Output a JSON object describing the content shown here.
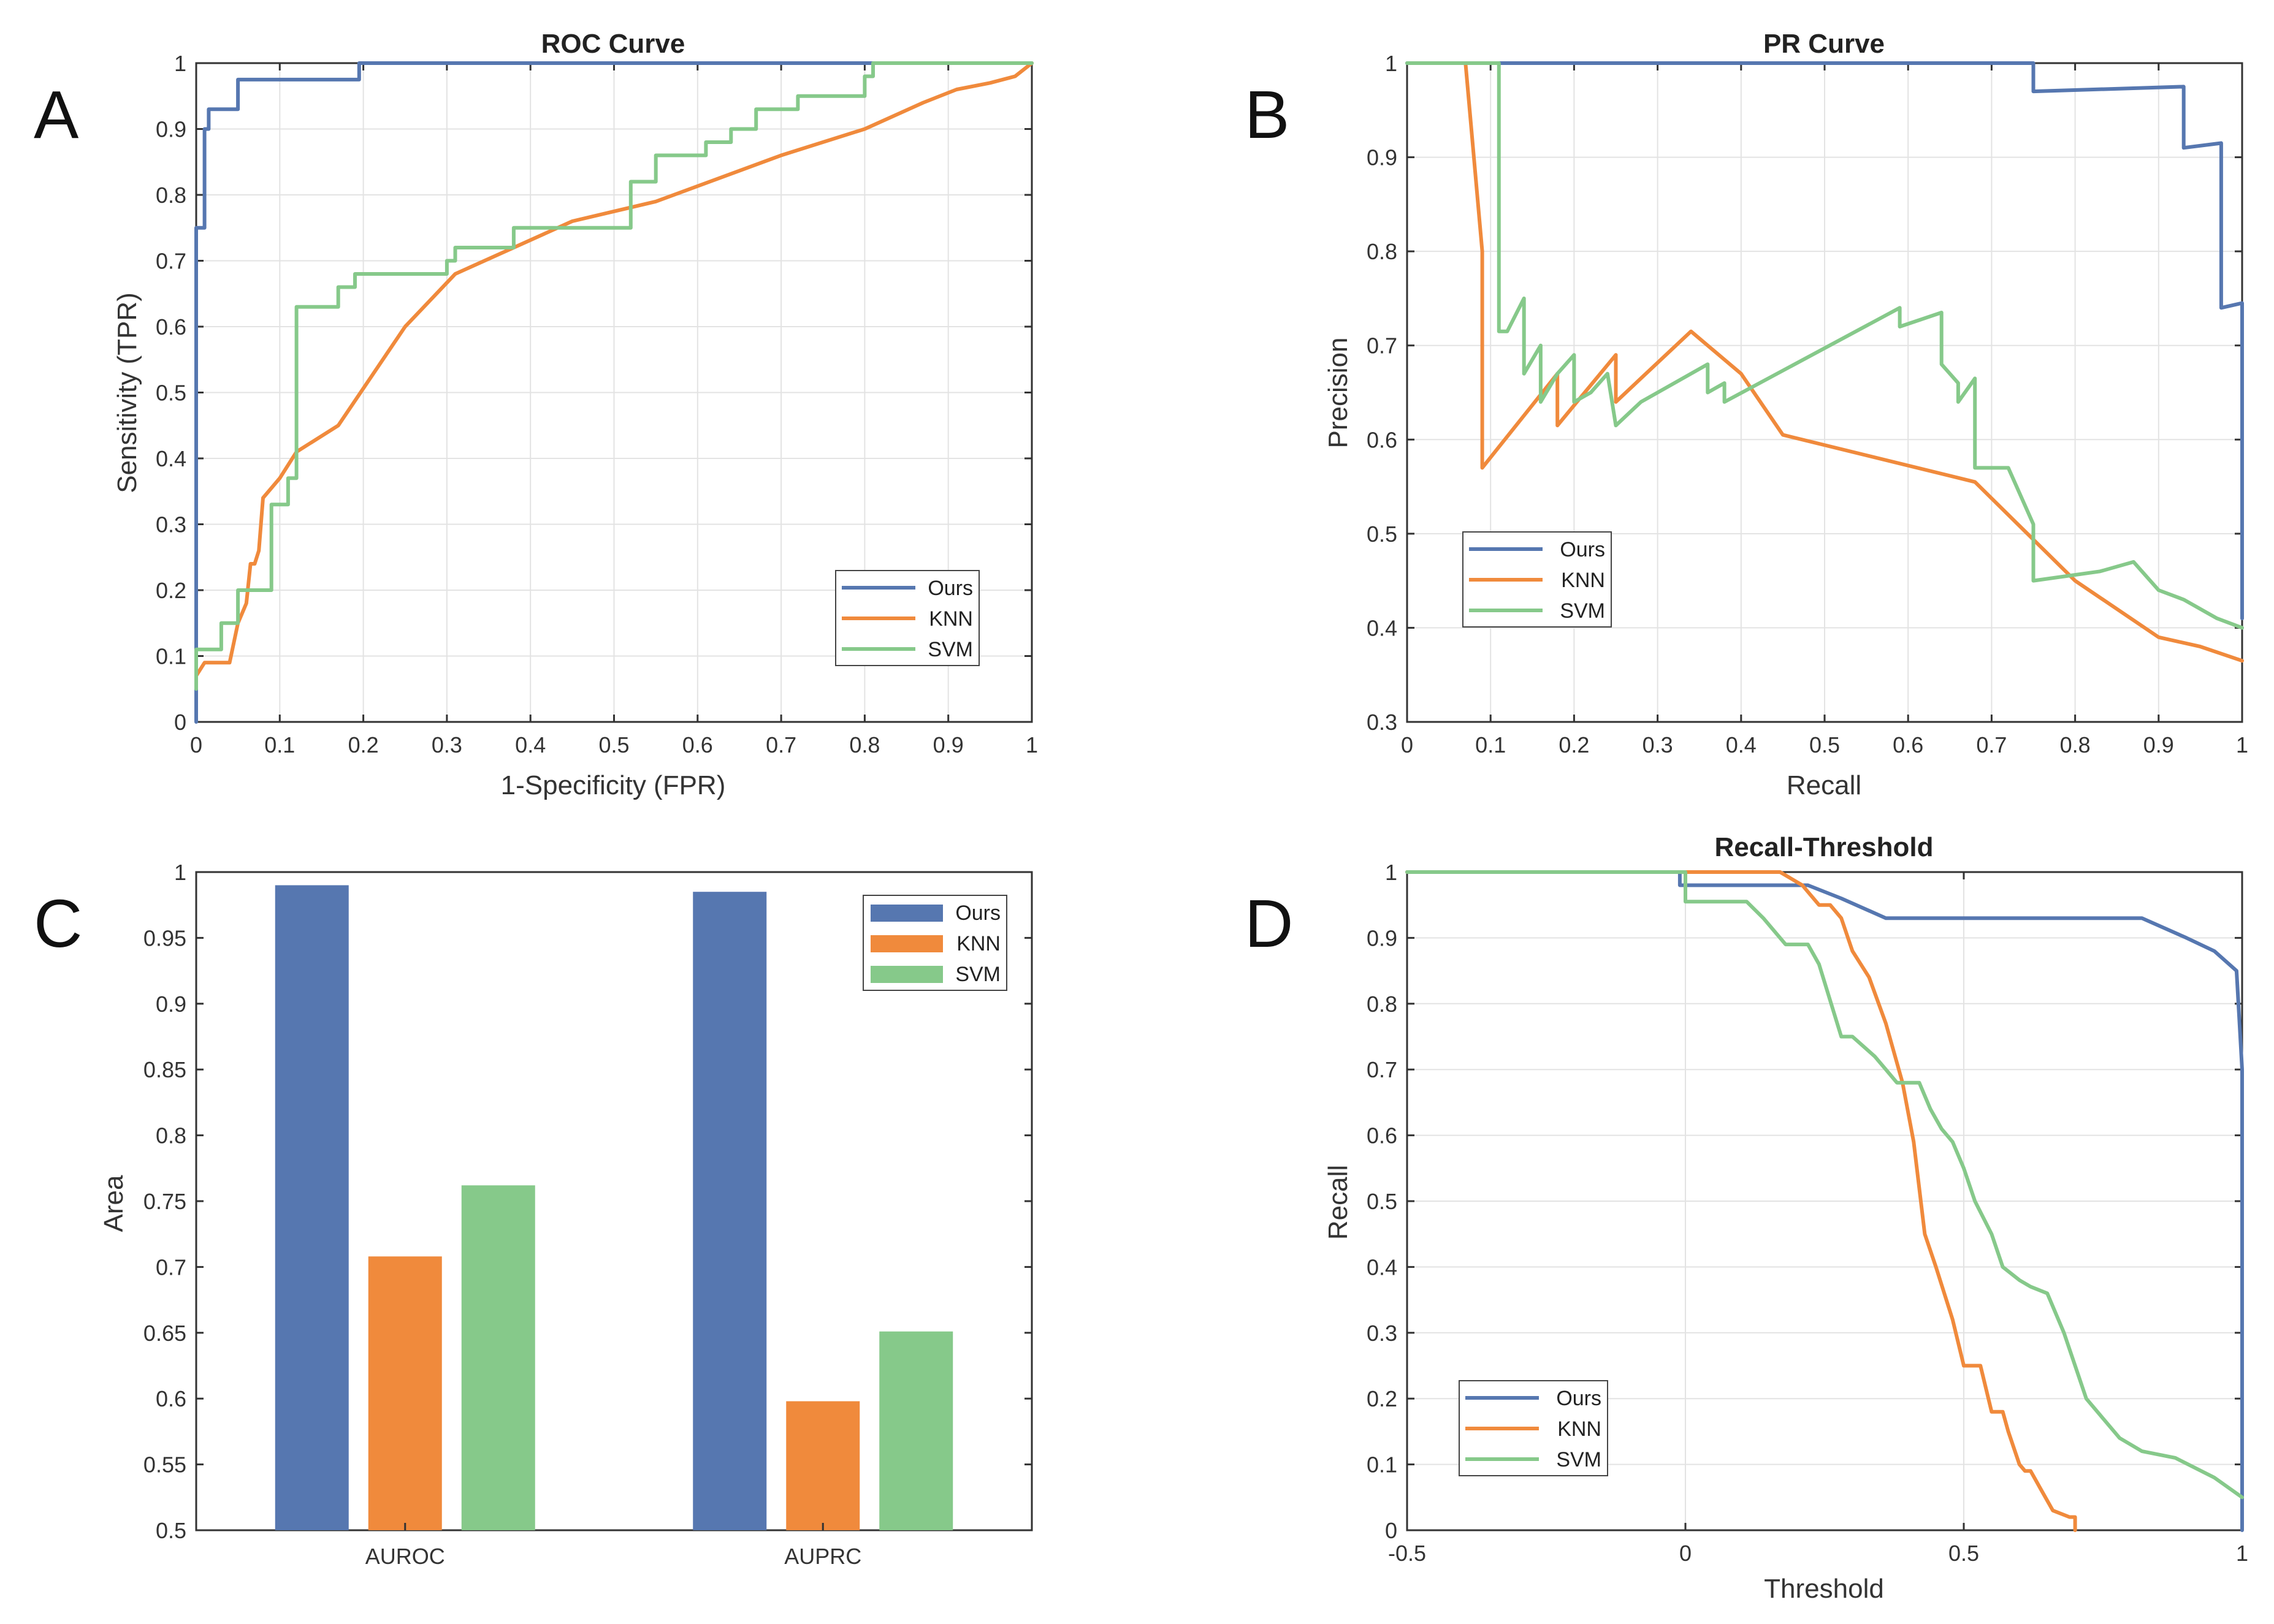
{
  "colors": {
    "ours": "#5677B0",
    "knn": "#F08A3C",
    "svm": "#86C98A"
  },
  "chart_data": [
    {
      "panel": "A",
      "type": "line",
      "title": "ROC Curve",
      "xlabel": "1-Specificity (FPR)",
      "ylabel": "Sensitivity (TPR)",
      "xlim": [
        0,
        1
      ],
      "ylim": [
        0,
        1
      ],
      "xticks": [
        0,
        0.1,
        0.2,
        0.3,
        0.4,
        0.5,
        0.6,
        0.7,
        0.8,
        0.9,
        1
      ],
      "xtick_labels": [
        "0",
        "0.1",
        "0.2",
        "0.3",
        "0.4",
        "0.5",
        "0.6",
        "0.7",
        "0.8",
        "0.9",
        "1"
      ],
      "yticks": [
        0,
        0.1,
        0.2,
        0.3,
        0.4,
        0.5,
        0.6,
        0.7,
        0.8,
        0.9,
        1
      ],
      "ytick_labels": [
        "0",
        "0.1",
        "0.2",
        "0.3",
        "0.4",
        "0.5",
        "0.6",
        "0.7",
        "0.8",
        "0.9",
        "1"
      ],
      "grid": true,
      "legend_position": "bottom-right",
      "series": [
        {
          "name": "Ours",
          "color_key": "ours",
          "x": [
            0,
            0,
            0.01,
            0.01,
            0.015,
            0.015,
            0.05,
            0.05,
            0.195,
            0.195,
            1
          ],
          "y": [
            0,
            0.75,
            0.75,
            0.9,
            0.9,
            0.93,
            0.93,
            0.975,
            0.975,
            1,
            1
          ]
        },
        {
          "name": "KNN",
          "color_key": "knn",
          "x": [
            0,
            0.01,
            0.04,
            0.05,
            0.06,
            0.065,
            0.07,
            0.075,
            0.08,
            0.1,
            0.12,
            0.17,
            0.25,
            0.31,
            0.45,
            0.55,
            0.7,
            0.8,
            0.87,
            0.91,
            0.95,
            0.98,
            1
          ],
          "y": [
            0.07,
            0.09,
            0.09,
            0.15,
            0.18,
            0.24,
            0.24,
            0.26,
            0.34,
            0.37,
            0.41,
            0.45,
            0.6,
            0.68,
            0.76,
            0.79,
            0.86,
            0.9,
            0.94,
            0.96,
            0.97,
            0.98,
            1
          ]
        },
        {
          "name": "SVM",
          "color_key": "svm",
          "x": [
            0,
            0,
            0.03,
            0.03,
            0.05,
            0.05,
            0.09,
            0.09,
            0.11,
            0.11,
            0.12,
            0.12,
            0.17,
            0.17,
            0.19,
            0.19,
            0.3,
            0.3,
            0.31,
            0.31,
            0.38,
            0.38,
            0.52,
            0.52,
            0.55,
            0.55,
            0.61,
            0.61,
            0.64,
            0.64,
            0.67,
            0.67,
            0.72,
            0.72,
            0.8,
            0.8,
            0.81,
            0.81,
            1
          ],
          "y": [
            0.05,
            0.11,
            0.11,
            0.15,
            0.15,
            0.2,
            0.2,
            0.33,
            0.33,
            0.37,
            0.37,
            0.63,
            0.63,
            0.66,
            0.66,
            0.68,
            0.68,
            0.7,
            0.7,
            0.72,
            0.72,
            0.75,
            0.75,
            0.82,
            0.82,
            0.86,
            0.86,
            0.88,
            0.88,
            0.9,
            0.9,
            0.93,
            0.93,
            0.95,
            0.95,
            0.98,
            0.98,
            1,
            1
          ]
        }
      ]
    },
    {
      "panel": "B",
      "type": "line",
      "title": "PR Curve",
      "xlabel": "Recall",
      "ylabel": "Precision",
      "xlim": [
        0,
        1
      ],
      "ylim": [
        0.3,
        1
      ],
      "xticks": [
        0,
        0.1,
        0.2,
        0.3,
        0.4,
        0.5,
        0.6,
        0.7,
        0.8,
        0.9,
        1
      ],
      "xtick_labels": [
        "0",
        "0.1",
        "0.2",
        "0.3",
        "0.4",
        "0.5",
        "0.6",
        "0.7",
        "0.8",
        "0.9",
        "1"
      ],
      "yticks": [
        0.3,
        0.4,
        0.5,
        0.6,
        0.7,
        0.8,
        0.9,
        1
      ],
      "ytick_labels": [
        "0.3",
        "0.4",
        "0.5",
        "0.6",
        "0.7",
        "0.8",
        "0.9",
        "1"
      ],
      "grid": true,
      "legend_position": "bottom-left",
      "series": [
        {
          "name": "Ours",
          "color_key": "ours",
          "x": [
            0,
            0.75,
            0.75,
            0.93,
            0.93,
            0.975,
            0.975,
            1,
            1
          ],
          "y": [
            1,
            1,
            0.97,
            0.975,
            0.91,
            0.915,
            0.74,
            0.745,
            0.41
          ]
        },
        {
          "name": "KNN",
          "color_key": "knn",
          "x": [
            0.07,
            0.09,
            0.09,
            0.18,
            0.18,
            0.25,
            0.25,
            0.34,
            0.4,
            0.45,
            0.68,
            0.8,
            0.9,
            0.95,
            1
          ],
          "y": [
            1,
            0.8,
            0.57,
            0.67,
            0.615,
            0.69,
            0.64,
            0.715,
            0.67,
            0.605,
            0.555,
            0.45,
            0.39,
            0.38,
            0.365
          ]
        },
        {
          "name": "SVM",
          "color_key": "svm",
          "x": [
            0,
            0.11,
            0.11,
            0.12,
            0.14,
            0.14,
            0.16,
            0.16,
            0.18,
            0.2,
            0.2,
            0.22,
            0.24,
            0.25,
            0.28,
            0.36,
            0.36,
            0.38,
            0.38,
            0.59,
            0.59,
            0.64,
            0.64,
            0.66,
            0.66,
            0.68,
            0.68,
            0.72,
            0.75,
            0.75,
            0.83,
            0.87,
            0.9,
            0.93,
            0.95,
            0.97,
            1
          ],
          "y": [
            1,
            1,
            0.715,
            0.715,
            0.75,
            0.67,
            0.7,
            0.64,
            0.67,
            0.69,
            0.64,
            0.65,
            0.67,
            0.615,
            0.64,
            0.68,
            0.65,
            0.66,
            0.64,
            0.74,
            0.72,
            0.735,
            0.68,
            0.66,
            0.64,
            0.665,
            0.57,
            0.57,
            0.51,
            0.45,
            0.46,
            0.47,
            0.44,
            0.43,
            0.42,
            0.41,
            0.4
          ]
        }
      ]
    },
    {
      "panel": "C",
      "type": "bar",
      "title": "",
      "xlabel": "",
      "ylabel": "Area",
      "categories": [
        "AUROC",
        "AUPRC"
      ],
      "ylim": [
        0.5,
        1
      ],
      "yticks": [
        0.5,
        0.55,
        0.6,
        0.65,
        0.7,
        0.75,
        0.8,
        0.85,
        0.9,
        0.95,
        1
      ],
      "ytick_labels": [
        "0.5",
        "0.55",
        "0.6",
        "0.65",
        "0.7",
        "0.75",
        "0.8",
        "0.85",
        "0.9",
        "0.95",
        "1"
      ],
      "grid": false,
      "legend_position": "top-right",
      "series": [
        {
          "name": "Ours",
          "color_key": "ours",
          "values": [
            0.99,
            0.985
          ]
        },
        {
          "name": "KNN",
          "color_key": "knn",
          "values": [
            0.708,
            0.598
          ]
        },
        {
          "name": "SVM",
          "color_key": "svm",
          "values": [
            0.762,
            0.651
          ]
        }
      ]
    },
    {
      "panel": "D",
      "type": "line",
      "title": "Recall-Threshold",
      "xlabel": "Threshold",
      "ylabel": "Recall",
      "xlim": [
        -0.5,
        1
      ],
      "ylim": [
        0,
        1
      ],
      "xticks": [
        -0.5,
        0,
        0.5,
        1
      ],
      "xtick_labels": [
        "-0.5",
        "0",
        "0.5",
        "1"
      ],
      "yticks": [
        0,
        0.1,
        0.2,
        0.3,
        0.4,
        0.5,
        0.6,
        0.7,
        0.8,
        0.9,
        1
      ],
      "ytick_labels": [
        "0",
        "0.1",
        "0.2",
        "0.3",
        "0.4",
        "0.5",
        "0.6",
        "0.7",
        "0.8",
        "0.9",
        "1"
      ],
      "grid": true,
      "legend_position": "bottom-left",
      "series": [
        {
          "name": "Ours",
          "color_key": "ours",
          "x": [
            -0.5,
            -0.01,
            -0.01,
            0.22,
            0.28,
            0.36,
            0.82,
            0.9,
            0.95,
            0.99,
            1,
            1
          ],
          "y": [
            1,
            1,
            0.98,
            0.98,
            0.96,
            0.93,
            0.93,
            0.9,
            0.88,
            0.85,
            0.7,
            0
          ]
        },
        {
          "name": "KNN",
          "color_key": "knn",
          "x": [
            -0.5,
            0.17,
            0.21,
            0.24,
            0.26,
            0.28,
            0.3,
            0.33,
            0.36,
            0.39,
            0.41,
            0.43,
            0.45,
            0.48,
            0.5,
            0.53,
            0.55,
            0.57,
            0.58,
            0.6,
            0.61,
            0.62,
            0.64,
            0.66,
            0.69,
            0.7,
            0.7
          ],
          "y": [
            1,
            1,
            0.98,
            0.95,
            0.95,
            0.93,
            0.88,
            0.84,
            0.77,
            0.68,
            0.59,
            0.45,
            0.4,
            0.32,
            0.25,
            0.25,
            0.18,
            0.18,
            0.15,
            0.1,
            0.09,
            0.09,
            0.06,
            0.03,
            0.02,
            0.02,
            0
          ]
        },
        {
          "name": "SVM",
          "color_key": "svm",
          "x": [
            -0.5,
            0,
            0,
            0.11,
            0.14,
            0.18,
            0.22,
            0.24,
            0.28,
            0.3,
            0.34,
            0.36,
            0.38,
            0.42,
            0.44,
            0.46,
            0.48,
            0.5,
            0.52,
            0.55,
            0.57,
            0.6,
            0.62,
            0.65,
            0.68,
            0.7,
            0.72,
            0.75,
            0.78,
            0.82,
            0.88,
            0.95,
            1
          ],
          "y": [
            1,
            1,
            0.955,
            0.955,
            0.93,
            0.89,
            0.89,
            0.86,
            0.75,
            0.75,
            0.72,
            0.7,
            0.68,
            0.68,
            0.64,
            0.61,
            0.59,
            0.55,
            0.5,
            0.45,
            0.4,
            0.38,
            0.37,
            0.36,
            0.3,
            0.25,
            0.2,
            0.17,
            0.14,
            0.12,
            0.11,
            0.08,
            0.05
          ]
        }
      ]
    }
  ]
}
